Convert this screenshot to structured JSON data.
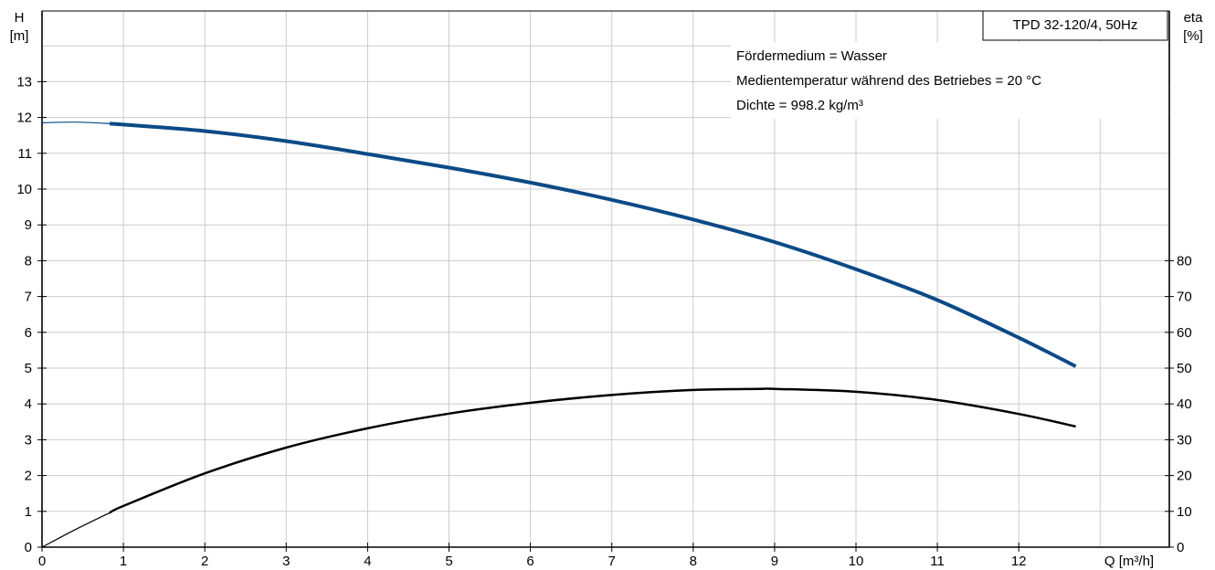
{
  "chart_data": {
    "type": "line",
    "title": "TPD 32-120/4, 50Hz",
    "info_lines": [
      "Fördermedium = Wasser",
      "Medientemperatur während des Betriebes = 20 °C",
      "Dichte = 998.2 kg/m³"
    ],
    "x_axis": {
      "label": "Q [m³/h]",
      "range": [
        0,
        13
      ],
      "ticks": [
        "0",
        "1",
        "2",
        "3",
        "4",
        "5",
        "6",
        "7",
        "8",
        "9",
        "10",
        "11",
        "12"
      ]
    },
    "y_left": {
      "label_line1": "H",
      "label_line2": "[m]",
      "range": [
        0,
        14
      ],
      "ticks": [
        "0",
        "1",
        "2",
        "3",
        "4",
        "5",
        "6",
        "7",
        "8",
        "9",
        "10",
        "11",
        "12",
        "13"
      ]
    },
    "y_right": {
      "label_line1": "eta",
      "label_line2": "[%]",
      "range": [
        0,
        140
      ],
      "ticks": [
        "0",
        "10",
        "20",
        "30",
        "40",
        "50",
        "60",
        "70",
        "80"
      ]
    },
    "grid": true,
    "series": [
      {
        "key": "head",
        "axis": "left",
        "color": "#0b4a86",
        "extension": [
          [
            0,
            11.85
          ],
          [
            0.4,
            11.87
          ],
          [
            0.83,
            11.83
          ]
        ],
        "values": [
          [
            0.83,
            11.83
          ],
          [
            1,
            11.8
          ],
          [
            2,
            11.62
          ],
          [
            3,
            11.34
          ],
          [
            4,
            10.98
          ],
          [
            5,
            10.6
          ],
          [
            6,
            10.18
          ],
          [
            7,
            9.7
          ],
          [
            8,
            9.15
          ],
          [
            9,
            8.52
          ],
          [
            10,
            7.76
          ],
          [
            11,
            6.9
          ],
          [
            12,
            5.85
          ],
          [
            12.7,
            5.05
          ]
        ]
      },
      {
        "key": "efficiency",
        "axis": "right",
        "color": "#000000",
        "extension": [
          [
            0,
            0
          ],
          [
            0.4,
            4.8
          ],
          [
            0.83,
            9.6
          ]
        ],
        "values": [
          [
            0.83,
            9.6
          ],
          [
            1,
            11.5
          ],
          [
            2,
            20.6
          ],
          [
            3,
            27.8
          ],
          [
            4,
            33.2
          ],
          [
            5,
            37.3
          ],
          [
            6,
            40.3
          ],
          [
            7,
            42.5
          ],
          [
            8,
            43.9
          ],
          [
            8.8,
            44.2
          ],
          [
            9,
            44.2
          ],
          [
            10,
            43.4
          ],
          [
            11,
            41.1
          ],
          [
            12,
            37.2
          ],
          [
            12.7,
            33.7
          ]
        ]
      }
    ]
  }
}
